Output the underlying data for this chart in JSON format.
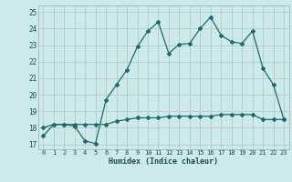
{
  "title": "",
  "xlabel": "Humidex (Indice chaleur)",
  "background_color": "#cceaea",
  "grid_color": "#bbcccc",
  "line_color": "#1a6b6b",
  "xlim": [
    -0.5,
    23.5
  ],
  "ylim": [
    16.7,
    25.4
  ],
  "yticks": [
    17,
    18,
    19,
    20,
    21,
    22,
    23,
    24,
    25
  ],
  "xticks": [
    0,
    1,
    2,
    3,
    4,
    5,
    6,
    7,
    8,
    9,
    10,
    11,
    12,
    13,
    14,
    15,
    16,
    17,
    18,
    19,
    20,
    21,
    22,
    23
  ],
  "line1_x": [
    0,
    1,
    2,
    3,
    4,
    5,
    6,
    7,
    8,
    9,
    10,
    11,
    12,
    13,
    14,
    15,
    16,
    17,
    18,
    19,
    20,
    21,
    22,
    23
  ],
  "line1_y": [
    17.5,
    18.2,
    18.2,
    18.1,
    17.2,
    17.05,
    19.7,
    20.6,
    21.5,
    22.9,
    23.85,
    24.4,
    22.5,
    23.05,
    23.1,
    24.0,
    24.7,
    23.6,
    23.2,
    23.1,
    23.85,
    21.6,
    20.6,
    18.5
  ],
  "line2_x": [
    0,
    1,
    2,
    3,
    4,
    5,
    6,
    7,
    8,
    9,
    10,
    11,
    12,
    13,
    14,
    15,
    16,
    17,
    18,
    19,
    20,
    21,
    22,
    23
  ],
  "line2_y": [
    18.0,
    18.2,
    18.2,
    18.2,
    18.2,
    18.2,
    18.2,
    18.4,
    18.5,
    18.6,
    18.6,
    18.6,
    18.7,
    18.7,
    18.7,
    18.7,
    18.7,
    18.8,
    18.8,
    18.8,
    18.8,
    18.5,
    18.5,
    18.5
  ]
}
